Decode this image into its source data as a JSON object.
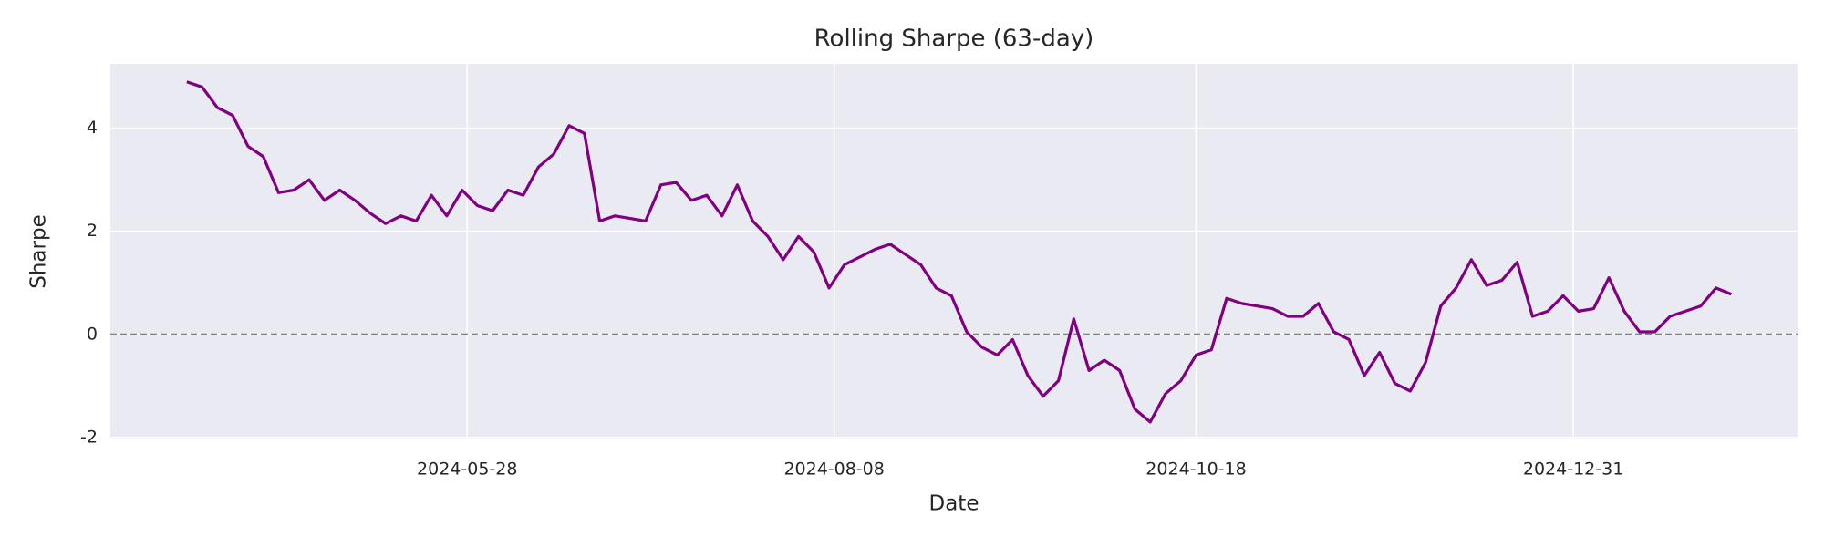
{
  "chart_data": {
    "type": "line",
    "title": "Rolling Sharpe (63-day)",
    "xlabel": "Date",
    "ylabel": "Sharpe",
    "x": [
      "2024-04-03",
      "2024-04-06",
      "2024-04-09",
      "2024-04-12",
      "2024-04-15",
      "2024-04-18",
      "2024-04-21",
      "2024-04-24",
      "2024-04-27",
      "2024-04-30",
      "2024-05-03",
      "2024-05-06",
      "2024-05-09",
      "2024-05-12",
      "2024-05-15",
      "2024-05-18",
      "2024-05-21",
      "2024-05-24",
      "2024-05-27",
      "2024-05-30",
      "2024-06-02",
      "2024-06-05",
      "2024-06-08",
      "2024-06-11",
      "2024-06-14",
      "2024-06-17",
      "2024-06-20",
      "2024-06-23",
      "2024-06-26",
      "2024-06-29",
      "2024-07-02",
      "2024-07-05",
      "2024-07-08",
      "2024-07-11",
      "2024-07-14",
      "2024-07-17",
      "2024-07-20",
      "2024-07-23",
      "2024-07-26",
      "2024-07-29",
      "2024-08-01",
      "2024-08-04",
      "2024-08-07",
      "2024-08-10",
      "2024-08-13",
      "2024-08-16",
      "2024-08-19",
      "2024-08-22",
      "2024-08-25",
      "2024-08-28",
      "2024-08-31",
      "2024-09-03",
      "2024-09-06",
      "2024-09-09",
      "2024-09-12",
      "2024-09-15",
      "2024-09-18",
      "2024-09-21",
      "2024-09-24",
      "2024-09-27",
      "2024-09-30",
      "2024-10-03",
      "2024-10-06",
      "2024-10-09",
      "2024-10-12",
      "2024-10-15",
      "2024-10-18",
      "2024-10-21",
      "2024-10-24",
      "2024-10-27",
      "2024-10-30",
      "2024-11-02",
      "2024-11-05",
      "2024-11-08",
      "2024-11-11",
      "2024-11-14",
      "2024-11-17",
      "2024-11-20",
      "2024-11-23",
      "2024-11-26",
      "2024-11-29",
      "2024-12-02",
      "2024-12-05",
      "2024-12-08",
      "2024-12-11",
      "2024-12-14",
      "2024-12-17",
      "2024-12-20",
      "2024-12-23",
      "2024-12-26",
      "2024-12-29",
      "2025-01-01",
      "2025-01-04",
      "2025-01-07",
      "2025-01-10",
      "2025-01-13",
      "2025-01-16",
      "2025-01-19",
      "2025-01-22",
      "2025-01-25",
      "2025-01-28",
      "2025-01-31"
    ],
    "series": [
      {
        "name": "Rolling Sharpe",
        "color": "#800080",
        "values": [
          4.9,
          4.8,
          4.4,
          4.25,
          3.65,
          3.45,
          2.75,
          2.8,
          3.0,
          2.6,
          2.8,
          2.6,
          2.35,
          2.15,
          2.3,
          2.2,
          2.7,
          2.3,
          2.8,
          2.5,
          2.4,
          2.8,
          2.7,
          3.25,
          3.5,
          4.05,
          3.9,
          2.2,
          2.3,
          2.25,
          2.2,
          2.9,
          2.95,
          2.6,
          2.7,
          2.3,
          2.9,
          2.2,
          1.9,
          1.45,
          1.9,
          1.6,
          0.9,
          1.35,
          1.5,
          1.65,
          1.75,
          1.55,
          1.35,
          0.9,
          0.75,
          0.05,
          -0.25,
          -0.4,
          -0.1,
          -0.8,
          -1.2,
          -0.9,
          0.3,
          -0.7,
          -0.5,
          -0.7,
          -1.45,
          -1.7,
          -1.15,
          -0.9,
          -0.4,
          -0.3,
          0.7,
          0.6,
          0.55,
          0.5,
          0.35,
          0.35,
          0.6,
          0.05,
          -0.1,
          -0.8,
          -0.35,
          -0.95,
          -1.1,
          -0.55,
          0.55,
          0.9,
          1.45,
          0.95,
          1.05,
          1.4,
          0.35,
          0.45,
          0.75,
          0.45,
          0.5,
          1.1,
          0.45,
          0.05,
          0.05,
          0.35,
          0.45,
          0.55,
          0.9,
          0.78
        ]
      }
    ],
    "xlim": [
      "2024-03-19",
      "2025-02-13"
    ],
    "xticks": [
      "2024-05-28",
      "2024-08-08",
      "2024-10-18",
      "2024-12-31"
    ],
    "ylim": [
      -2.02,
      5.25
    ],
    "yticks": [
      -2,
      0,
      2,
      4
    ],
    "hline": {
      "y": 0,
      "color": "#808080",
      "style": "dashed"
    },
    "grid": true
  }
}
